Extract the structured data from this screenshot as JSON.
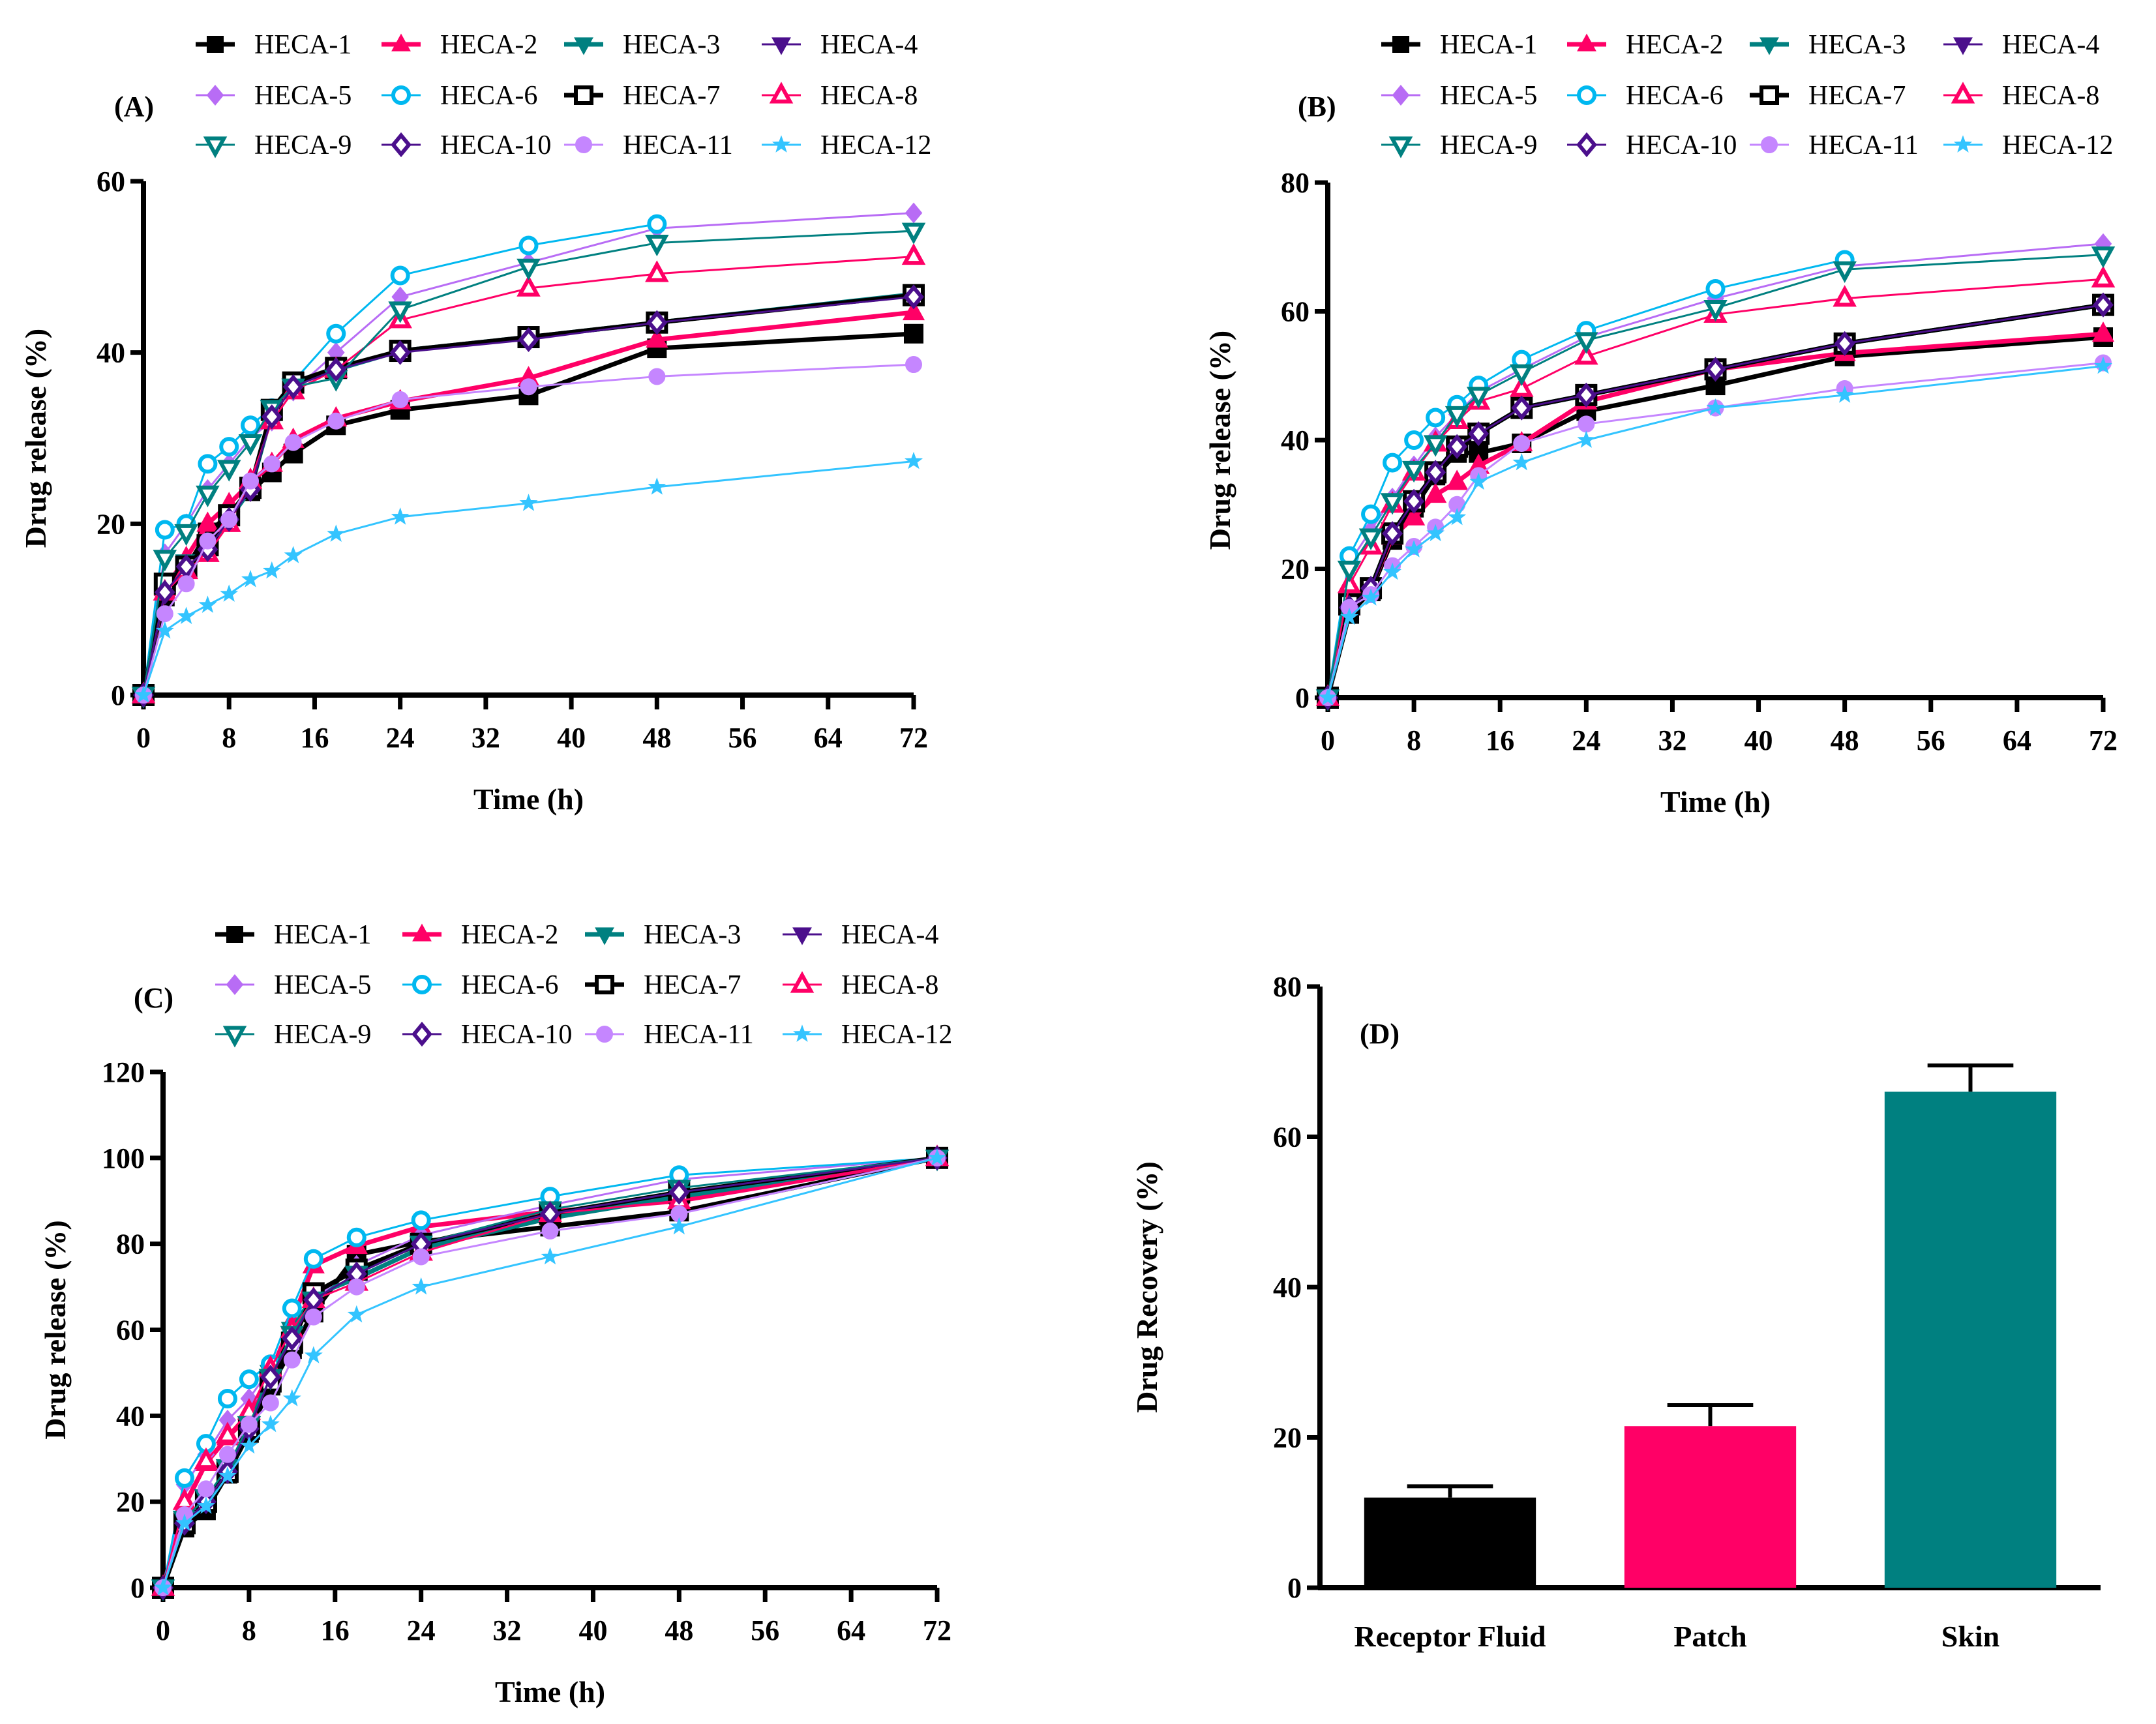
{
  "series_styles": [
    {
      "name": "HECA-1",
      "color": "#000000",
      "marker": "square",
      "fill": true,
      "bold": true
    },
    {
      "name": "HECA-2",
      "color": "#ff0066",
      "marker": "triangle-up",
      "fill": true,
      "bold": true
    },
    {
      "name": "HECA-3",
      "color": "#008080",
      "marker": "triangle-down",
      "fill": true,
      "bold": true
    },
    {
      "name": "HECA-4",
      "color": "#4b0f8c",
      "marker": "triangle-down",
      "fill": true,
      "bold": false
    },
    {
      "name": "HECA-5",
      "color": "#b86cf5",
      "marker": "diamond",
      "fill": true,
      "bold": false
    },
    {
      "name": "HECA-6",
      "color": "#00b8f0",
      "marker": "circle",
      "fill": false,
      "bold": false
    },
    {
      "name": "HECA-7",
      "color": "#000000",
      "marker": "square",
      "fill": false,
      "bold": true
    },
    {
      "name": "HECA-8",
      "color": "#ff0066",
      "marker": "triangle-up",
      "fill": false,
      "bold": false
    },
    {
      "name": "HECA-9",
      "color": "#008080",
      "marker": "triangle-down",
      "fill": false,
      "bold": false
    },
    {
      "name": "HECA-10",
      "color": "#4b0f8c",
      "marker": "diamond",
      "fill": false,
      "bold": false
    },
    {
      "name": "HECA-11",
      "color": "#c586ff",
      "marker": "circle",
      "fill": true,
      "bold": false
    },
    {
      "name": "HECA-12",
      "color": "#33c4ff",
      "marker": "star",
      "fill": true,
      "bold": false
    }
  ],
  "chart_data": [
    {
      "type": "line",
      "panel_label": "(A)",
      "xlabel": "Time (h)",
      "ylabel": "Drug release (%)",
      "xlim": [
        0,
        72
      ],
      "ylim": [
        0,
        60
      ],
      "xticks": [
        0,
        8,
        16,
        24,
        32,
        40,
        48,
        56,
        64,
        72
      ],
      "yticks": [
        0,
        20,
        40,
        60
      ],
      "legend": "top",
      "grid": false,
      "x": [
        0,
        2,
        4,
        6,
        8,
        10,
        12,
        14,
        18,
        24,
        36,
        48,
        72
      ],
      "series": [
        {
          "name": "HECA-1",
          "values": [
            0,
            11.5,
            14.8,
            19,
            21,
            23.8,
            26,
            28.2,
            31.5,
            33.3,
            35,
            40.5,
            42.2
          ]
        },
        {
          "name": "HECA-2",
          "values": [
            0,
            12.5,
            16,
            20,
            22.3,
            24.8,
            27,
            29.8,
            32.3,
            34.3,
            37,
            41.5,
            44.7
          ]
        },
        {
          "name": "HECA-3",
          "values": [
            0,
            12.8,
            15.5,
            17,
            20.5,
            24,
            33,
            36.5,
            38,
            40.2,
            41.8,
            43.5,
            46.8
          ]
        },
        {
          "name": "HECA-4",
          "values": [
            0,
            13,
            15.3,
            17.5,
            20.8,
            24.5,
            33.2,
            36.3,
            38,
            40.3,
            41.8,
            43.6,
            46.7
          ]
        },
        {
          "name": "HECA-5",
          "values": [
            0,
            16.5,
            20,
            24,
            27,
            30,
            32,
            35.5,
            40,
            46.5,
            50.5,
            54.5,
            56.3
          ]
        },
        {
          "name": "HECA-6",
          "values": [
            0,
            19.3,
            20,
            27,
            29,
            31.5,
            33.5,
            36.6,
            42.2,
            49,
            52.5,
            55,
            null
          ]
        },
        {
          "name": "HECA-7",
          "values": [
            0,
            13,
            15,
            17.5,
            21,
            24.2,
            33.3,
            36.5,
            38.2,
            40.2,
            41.8,
            43.5,
            46.7
          ]
        },
        {
          "name": "HECA-8",
          "values": [
            0,
            12,
            14.5,
            16.5,
            20,
            25,
            32,
            35.5,
            38,
            43.8,
            47.5,
            49.2,
            51.2
          ]
        },
        {
          "name": "HECA-9",
          "values": [
            0,
            16,
            19,
            23.5,
            26.5,
            29.5,
            33.5,
            36,
            37,
            45,
            50,
            52.8,
            54.2
          ]
        },
        {
          "name": "HECA-10",
          "values": [
            0,
            12,
            15,
            17,
            20.5,
            24,
            32.5,
            36,
            38,
            40,
            41.5,
            43.5,
            46.5
          ]
        },
        {
          "name": "HECA-11",
          "values": [
            0,
            9.5,
            13,
            18,
            20.5,
            25,
            27,
            29.5,
            32,
            34.5,
            36,
            37.2,
            38.6
          ]
        },
        {
          "name": "HECA-12",
          "values": [
            0,
            7.5,
            9.2,
            10.5,
            11.8,
            13.5,
            14.5,
            16.3,
            18.8,
            20.8,
            22.4,
            24.3,
            27.3
          ]
        }
      ]
    },
    {
      "type": "line",
      "panel_label": "(B)",
      "xlabel": "Time (h)",
      "ylabel": "Drug release (%)",
      "xlim": [
        0,
        72
      ],
      "ylim": [
        0,
        80
      ],
      "xticks": [
        0,
        8,
        16,
        24,
        32,
        40,
        48,
        56,
        64,
        72
      ],
      "yticks": [
        0,
        20,
        40,
        60,
        80
      ],
      "legend": "top",
      "grid": false,
      "x": [
        0,
        2,
        4,
        6,
        8,
        10,
        12,
        14,
        18,
        24,
        36,
        48,
        72
      ],
      "series": [
        {
          "name": "HECA-1",
          "values": [
            0,
            13,
            16.5,
            24.5,
            29.5,
            34.5,
            38,
            38,
            39.5,
            44.5,
            48.5,
            53,
            56
          ]
        },
        {
          "name": "HECA-2",
          "values": [
            0,
            14,
            17,
            25,
            28,
            31.5,
            33.5,
            36,
            39.5,
            46,
            51,
            53.5,
            56.5
          ]
        },
        {
          "name": "HECA-3",
          "values": [
            0,
            14,
            17,
            25.5,
            30.5,
            35,
            39,
            41,
            45,
            47,
            51,
            55,
            61
          ]
        },
        {
          "name": "HECA-4",
          "values": [
            0,
            14,
            17,
            25.5,
            30.5,
            35,
            39,
            41,
            45,
            47,
            51,
            55,
            61
          ]
        },
        {
          "name": "HECA-5",
          "values": [
            0,
            21,
            26,
            31,
            36,
            40.5,
            44,
            47.5,
            51,
            56,
            62,
            67,
            70.5
          ]
        },
        {
          "name": "HECA-6",
          "values": [
            0,
            22,
            28.5,
            36.5,
            40,
            43.5,
            45.5,
            48.5,
            52.5,
            57,
            63.5,
            68,
            null
          ]
        },
        {
          "name": "HECA-7",
          "values": [
            0,
            14.5,
            17,
            25.5,
            30.5,
            35,
            39,
            41,
            45,
            47,
            51,
            55,
            61
          ]
        },
        {
          "name": "HECA-8",
          "values": [
            0,
            17.5,
            23.5,
            30,
            35,
            39.5,
            43,
            46,
            48,
            53,
            59.5,
            62,
            65
          ]
        },
        {
          "name": "HECA-9",
          "values": [
            0,
            20,
            25,
            30.5,
            35.5,
            39.5,
            44,
            47,
            50.5,
            55.5,
            60.5,
            66.5,
            68.8
          ]
        },
        {
          "name": "HECA-10",
          "values": [
            0,
            14,
            17,
            25.5,
            30.5,
            35,
            39,
            41,
            45,
            47,
            51,
            55,
            61
          ]
        },
        {
          "name": "HECA-11",
          "values": [
            0,
            14,
            16,
            20.5,
            23.5,
            26.5,
            30,
            34.5,
            39.5,
            42.5,
            45,
            48,
            52
          ]
        },
        {
          "name": "HECA-12",
          "values": [
            0,
            12.5,
            15.5,
            19.5,
            23,
            25.5,
            28,
            33.5,
            36.5,
            40,
            45,
            47,
            51.5
          ]
        }
      ]
    },
    {
      "type": "line",
      "panel_label": "(C)",
      "xlabel": "Time (h)",
      "ylabel": "Drug release (%)",
      "xlim": [
        0,
        72
      ],
      "ylim": [
        0,
        120
      ],
      "xticks": [
        0,
        8,
        16,
        24,
        32,
        40,
        48,
        56,
        64,
        72
      ],
      "yticks": [
        0,
        20,
        40,
        60,
        80,
        100,
        120
      ],
      "legend": "top",
      "grid": false,
      "x": [
        0,
        2,
        4,
        6,
        8,
        10,
        12,
        14,
        18,
        24,
        36,
        48,
        72
      ],
      "series": [
        {
          "name": "HECA-1",
          "values": [
            0,
            14,
            18,
            26.5,
            36,
            47,
            55.5,
            64,
            77.5,
            80.5,
            84,
            87.5,
            100
          ]
        },
        {
          "name": "HECA-2",
          "values": [
            0,
            19,
            29,
            35,
            40,
            50,
            62,
            75,
            79.5,
            84,
            87.5,
            90,
            100
          ]
        },
        {
          "name": "HECA-3",
          "values": [
            0,
            15,
            20,
            27,
            37,
            50,
            60,
            68,
            72,
            79,
            86,
            91,
            100
          ]
        },
        {
          "name": "HECA-4",
          "values": [
            0,
            15,
            20,
            27,
            37,
            49,
            59,
            67,
            73,
            80,
            87,
            92,
            100
          ]
        },
        {
          "name": "HECA-5",
          "values": [
            0,
            24,
            31,
            39,
            44,
            51,
            60,
            67,
            75,
            82,
            89,
            95,
            100
          ]
        },
        {
          "name": "HECA-6",
          "values": [
            0,
            25.5,
            33.5,
            44,
            48.5,
            52,
            65,
            76.5,
            81.5,
            85.5,
            91,
            96,
            100
          ]
        },
        {
          "name": "HECA-7",
          "values": [
            0,
            15,
            20,
            27,
            37,
            48,
            57,
            68.5,
            74,
            80,
            87,
            92,
            100
          ]
        },
        {
          "name": "HECA-8",
          "values": [
            0,
            20,
            29.5,
            35.5,
            41,
            51,
            60,
            67,
            71,
            78,
            87,
            90,
            100
          ]
        },
        {
          "name": "HECA-9",
          "values": [
            0,
            16,
            21,
            28,
            38,
            49,
            59,
            67,
            73,
            80,
            88,
            93,
            100
          ]
        },
        {
          "name": "HECA-10",
          "values": [
            0,
            15,
            20,
            27,
            37,
            49,
            58,
            67,
            73,
            80,
            87,
            92,
            100
          ]
        },
        {
          "name": "HECA-11",
          "values": [
            0,
            17,
            23,
            31,
            38,
            43,
            53,
            63,
            70,
            77,
            83,
            87,
            100
          ]
        },
        {
          "name": "HECA-12",
          "values": [
            0,
            15,
            19,
            26,
            33,
            38,
            44,
            54,
            63.5,
            70,
            77,
            84,
            100
          ]
        }
      ]
    },
    {
      "type": "bar",
      "panel_label": "(D)",
      "xlabel": "",
      "ylabel": "Drug Recovery (%)",
      "ylim": [
        0,
        80
      ],
      "yticks": [
        0,
        20,
        40,
        60,
        80
      ],
      "grid": false,
      "categories": [
        "Receptor Fluid",
        "Patch",
        "Skin"
      ],
      "values": [
        12,
        21.5,
        66
      ],
      "errors": [
        1.5,
        2.8,
        3.5
      ],
      "colors": [
        "#000000",
        "#ff0066",
        "#008080"
      ]
    }
  ]
}
